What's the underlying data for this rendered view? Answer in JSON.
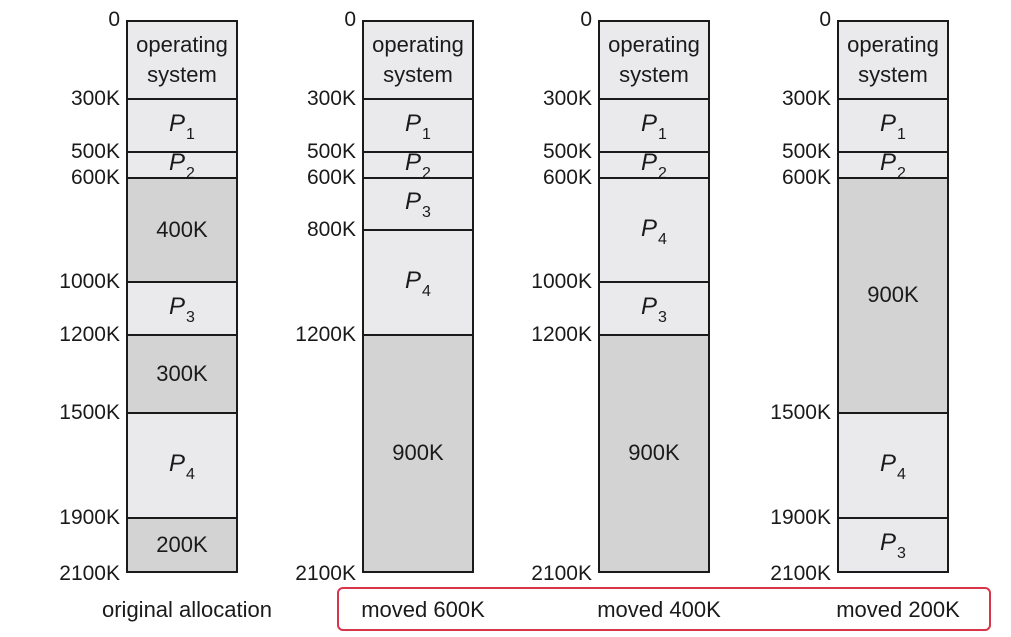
{
  "diagrams": [
    {
      "id": "original",
      "caption": "original allocation",
      "addresses": [
        "0",
        "300K",
        "500K",
        "600K",
        "1000K",
        "1200K",
        "1500K",
        "1900K",
        "2100K"
      ],
      "segments": [
        {
          "kind": "os",
          "label": "operating\nsystem",
          "from": 0,
          "to": 300
        },
        {
          "kind": "proc",
          "name": "P",
          "sub": "1",
          "from": 300,
          "to": 500
        },
        {
          "kind": "proc",
          "name": "P",
          "sub": "2",
          "from": 500,
          "to": 600
        },
        {
          "kind": "free",
          "label": "400K",
          "from": 600,
          "to": 1000
        },
        {
          "kind": "proc",
          "name": "P",
          "sub": "3",
          "from": 1000,
          "to": 1200
        },
        {
          "kind": "free",
          "label": "300K",
          "from": 1200,
          "to": 1500
        },
        {
          "kind": "proc",
          "name": "P",
          "sub": "4",
          "from": 1500,
          "to": 1900
        },
        {
          "kind": "free",
          "label": "200K",
          "from": 1900,
          "to": 2100
        }
      ]
    },
    {
      "id": "moved-600",
      "caption": "moved 600K",
      "addresses": [
        "0",
        "300K",
        "500K",
        "600K",
        "800K",
        "1200K",
        "2100K"
      ],
      "segments": [
        {
          "kind": "os",
          "label": "operating\nsystem",
          "from": 0,
          "to": 300
        },
        {
          "kind": "proc",
          "name": "P",
          "sub": "1",
          "from": 300,
          "to": 500
        },
        {
          "kind": "proc",
          "name": "P",
          "sub": "2",
          "from": 500,
          "to": 600
        },
        {
          "kind": "proc",
          "name": "P",
          "sub": "3",
          "from": 600,
          "to": 800
        },
        {
          "kind": "proc",
          "name": "P",
          "sub": "4",
          "from": 800,
          "to": 1200
        },
        {
          "kind": "free",
          "label": "900K",
          "from": 1200,
          "to": 2100
        }
      ]
    },
    {
      "id": "moved-400",
      "caption": "moved 400K",
      "addresses": [
        "0",
        "300K",
        "500K",
        "600K",
        "1000K",
        "1200K",
        "2100K"
      ],
      "segments": [
        {
          "kind": "os",
          "label": "operating\nsystem",
          "from": 0,
          "to": 300
        },
        {
          "kind": "proc",
          "name": "P",
          "sub": "1",
          "from": 300,
          "to": 500
        },
        {
          "kind": "proc",
          "name": "P",
          "sub": "2",
          "from": 500,
          "to": 600
        },
        {
          "kind": "proc",
          "name": "P",
          "sub": "4",
          "from": 600,
          "to": 1000
        },
        {
          "kind": "proc",
          "name": "P",
          "sub": "3",
          "from": 1000,
          "to": 1200
        },
        {
          "kind": "free",
          "label": "900K",
          "from": 1200,
          "to": 2100
        }
      ]
    },
    {
      "id": "moved-200",
      "caption": "moved 200K",
      "addresses": [
        "0",
        "300K",
        "500K",
        "600K",
        "1500K",
        "1900K",
        "2100K"
      ],
      "segments": [
        {
          "kind": "os",
          "label": "operating\nsystem",
          "from": 0,
          "to": 300
        },
        {
          "kind": "proc",
          "name": "P",
          "sub": "1",
          "from": 300,
          "to": 500
        },
        {
          "kind": "proc",
          "name": "P",
          "sub": "2",
          "from": 500,
          "to": 600
        },
        {
          "kind": "free",
          "label": "900K",
          "from": 600,
          "to": 1500
        },
        {
          "kind": "proc",
          "name": "P",
          "sub": "4",
          "from": 1500,
          "to": 1900
        },
        {
          "kind": "proc",
          "name": "P",
          "sub": "3",
          "from": 1900,
          "to": 2100
        }
      ]
    }
  ],
  "colors": {
    "process": "#eaeaec",
    "free": "#d3d3d3",
    "outline": "#1a1a1a",
    "highlight": "#d8344a"
  },
  "memory_total_k": 2100
}
